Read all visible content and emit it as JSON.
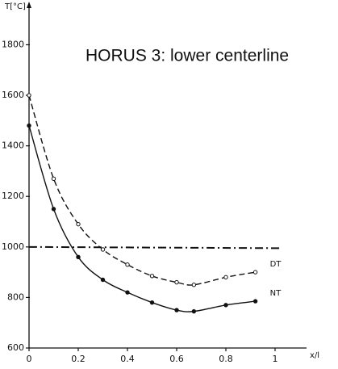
{
  "chart_data": {
    "type": "line",
    "title": "HORUS 3: lower centerline",
    "y_label": "T[°C]",
    "x_label": "x/l",
    "xlim": [
      0,
      1.1
    ],
    "xticks": [
      0,
      0.2,
      0.4,
      0.6,
      0.8,
      1.0
    ],
    "ylim": [
      600,
      1950
    ],
    "yticks": [
      600,
      800,
      1000,
      1200,
      1400,
      1600,
      1800
    ],
    "series": [
      {
        "name": "DT",
        "color": "#111111",
        "style": "dashed",
        "x": [
          0,
          0.1,
          0.2,
          0.3,
          0.4,
          0.5,
          0.6,
          0.67,
          0.8,
          0.92
        ],
        "values": [
          1600,
          1270,
          1090,
          990,
          930,
          885,
          860,
          850,
          880,
          900
        ]
      },
      {
        "name": "NT",
        "color": "#111111",
        "style": "solid",
        "x": [
          0,
          0.1,
          0.2,
          0.3,
          0.4,
          0.5,
          0.6,
          0.67,
          0.8,
          0.92
        ],
        "values": [
          1480,
          1150,
          960,
          870,
          820,
          780,
          750,
          745,
          770,
          785
        ]
      },
      {
        "color": "#111111",
        "style": "dashdot",
        "x": [
          0,
          1.02
        ],
        "values": [
          1000,
          995
        ]
      }
    ]
  }
}
